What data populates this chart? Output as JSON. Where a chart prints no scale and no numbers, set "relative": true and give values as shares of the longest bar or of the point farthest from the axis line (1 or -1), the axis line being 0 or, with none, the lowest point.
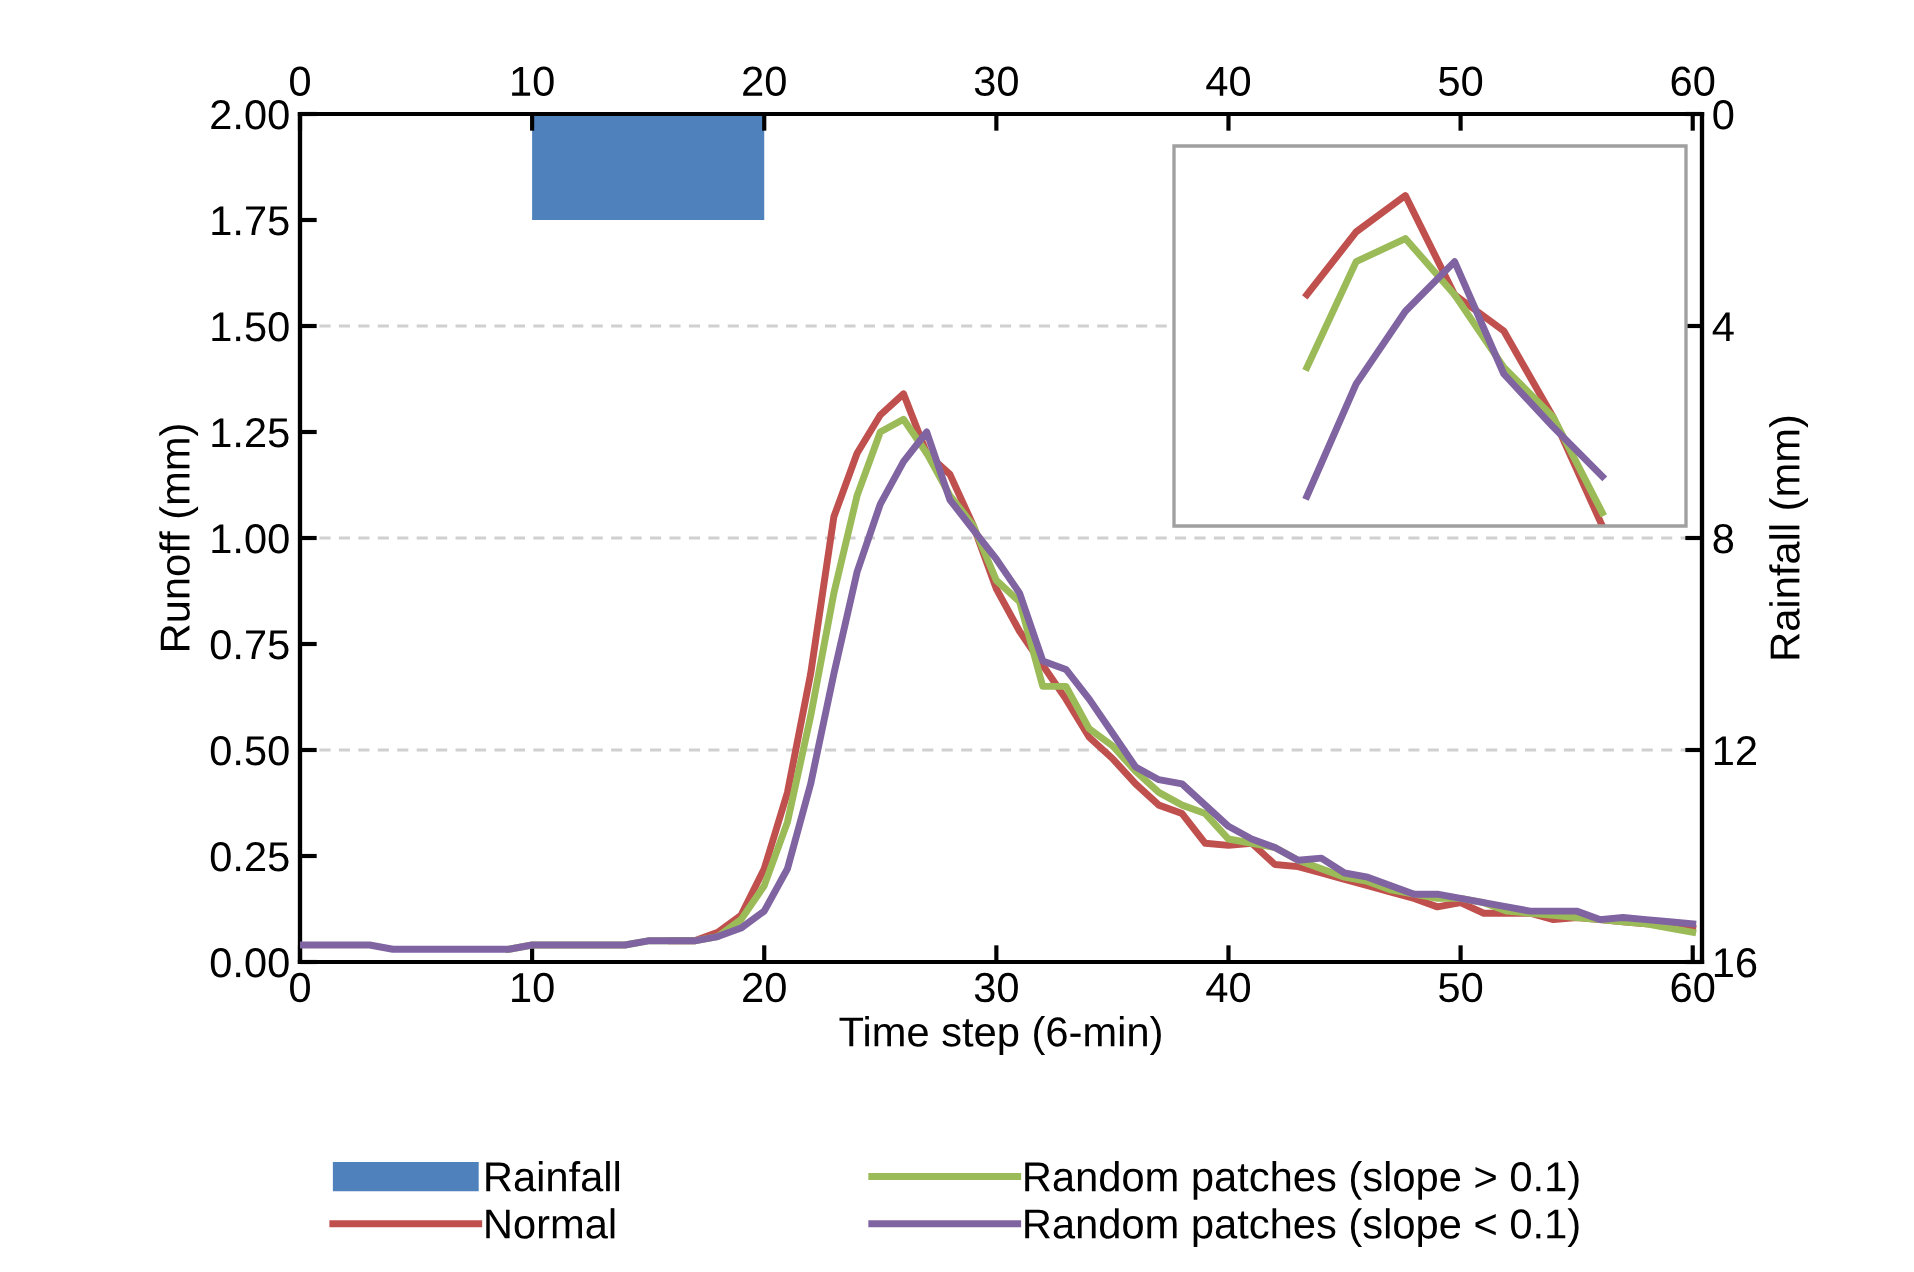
{
  "chart_data": [
    {
      "type": "line",
      "xlabel": "Time step (6-min)",
      "ylabel": "Runoff (mm)",
      "y2label": "Rainfall (mm)",
      "xlim": [
        0,
        60.4
      ],
      "xticks": [
        0,
        10,
        20,
        30,
        40,
        50,
        60
      ],
      "x2lim": [
        0,
        60.4
      ],
      "x2ticks": [
        0,
        10,
        20,
        30,
        40,
        50,
        60
      ],
      "ylim": [
        0,
        2
      ],
      "yticks": [
        {
          "value": 0,
          "label": "0.00"
        },
        {
          "value": 0.25,
          "label": "0.25"
        },
        {
          "value": 0.5,
          "label": "0.50"
        },
        {
          "value": 0.75,
          "label": "0.75"
        },
        {
          "value": 1,
          "label": "1.00"
        },
        {
          "value": 1.25,
          "label": "1.25"
        },
        {
          "value": 1.5,
          "label": "1.50"
        },
        {
          "value": 1.75,
          "label": "1.75"
        },
        {
          "value": 2,
          "label": "2.00"
        }
      ],
      "y2lim": [
        16,
        0
      ],
      "y2ticks": [
        0,
        4,
        8,
        12,
        16
      ],
      "grid": "y2",
      "legend": "bottom",
      "line_style": "solid",
      "marker": "none",
      "x": [
        0,
        1,
        2,
        3,
        4,
        5,
        6,
        7,
        8,
        9,
        10,
        11,
        12,
        13,
        14,
        15,
        16,
        17,
        18,
        19,
        20,
        21,
        22,
        23,
        24,
        25,
        26,
        27,
        28,
        29,
        30,
        31,
        32,
        33,
        34,
        35,
        36,
        37,
        38,
        39,
        40,
        41,
        42,
        43,
        44,
        45,
        46,
        47,
        48,
        49,
        50,
        51,
        52,
        53,
        54,
        55,
        56,
        57,
        58,
        59,
        60
      ],
      "series": [
        {
          "name": "Rainfall",
          "type": "area",
          "axis": "y2",
          "color": "#4f81bd",
          "x": [
            10,
            20
          ],
          "values": [
            2,
            2
          ]
        },
        {
          "name": "Normal",
          "color": "#c0504d",
          "values": [
            null,
            null,
            null,
            null,
            null,
            null,
            null,
            null,
            null,
            null,
            null,
            null,
            null,
            null,
            null,
            null,
            0.05,
            0.05,
            0.07,
            0.11,
            0.22,
            0.4,
            0.68,
            1.05,
            1.2,
            1.29,
            1.34,
            1.2,
            1.15,
            1.03,
            0.88,
            0.78,
            0.7,
            0.62,
            0.53,
            0.48,
            0.42,
            0.37,
            0.35,
            0.28,
            0.275,
            0.28,
            0.23,
            0.225,
            0.21,
            0.195,
            0.18,
            0.165,
            0.15,
            0.13,
            0.14,
            0.115,
            0.115,
            0.115,
            0.1,
            0.105,
            0.1,
            0.095,
            0.09,
            0.09,
            0.08
          ]
        },
        {
          "name": "Random patches (slope > 0.1)",
          "color": "#9bbb59",
          "values": [
            null,
            null,
            null,
            null,
            null,
            null,
            null,
            null,
            null,
            0.03,
            0.04,
            0.04,
            0.04,
            0.04,
            0.04,
            0.05,
            0.05,
            0.05,
            0.06,
            0.1,
            0.18,
            0.33,
            0.58,
            0.87,
            1.1,
            1.25,
            1.28,
            1.2,
            1.1,
            1.03,
            0.9,
            0.85,
            0.65,
            0.65,
            0.55,
            0.51,
            0.45,
            0.4,
            0.37,
            0.35,
            0.29,
            0.28,
            0.27,
            0.24,
            0.22,
            0.2,
            0.19,
            0.17,
            0.16,
            0.15,
            0.15,
            0.14,
            0.12,
            0.115,
            0.11,
            0.105,
            0.1,
            0.095,
            0.09,
            0.08,
            0.07
          ]
        },
        {
          "name": "Random patches (slope < 0.1)",
          "color": "#8064a2",
          "values": [
            0.04,
            0.04,
            0.04,
            0.04,
            0.03,
            0.03,
            0.03,
            0.03,
            0.03,
            0.03,
            0.04,
            0.04,
            0.04,
            0.04,
            0.04,
            0.05,
            0.05,
            0.05,
            0.06,
            0.08,
            0.12,
            0.22,
            0.42,
            0.68,
            0.92,
            1.08,
            1.18,
            1.25,
            1.09,
            1.02,
            0.95,
            0.87,
            0.71,
            0.69,
            0.62,
            0.54,
            0.46,
            0.43,
            0.42,
            0.37,
            0.32,
            0.29,
            0.27,
            0.24,
            0.245,
            0.21,
            0.2,
            0.18,
            0.16,
            0.16,
            0.15,
            0.14,
            0.13,
            0.12,
            0.12,
            0.12,
            0.1,
            0.105,
            0.1,
            0.095,
            0.09
          ]
        }
      ]
    },
    {
      "type": "line",
      "relative": true,
      "line_style": "solid",
      "marker": "none",
      "categories": [
        null,
        null,
        null,
        null,
        null,
        null,
        null
      ],
      "series": [
        {
          "color": "#c0504d",
          "values": [
            0.7,
            0.89,
            1,
            0.7,
            0.59,
            0.33,
            0
          ]
        },
        {
          "color": "#9bbb59",
          "values": [
            0.48,
            0.8,
            0.87,
            0.7,
            0.48,
            0.33,
            0.04
          ]
        },
        {
          "color": "#8064a2",
          "values": [
            0.09,
            0.43,
            0.65,
            0.8,
            0.46,
            0.3,
            0.15
          ]
        }
      ]
    }
  ]
}
